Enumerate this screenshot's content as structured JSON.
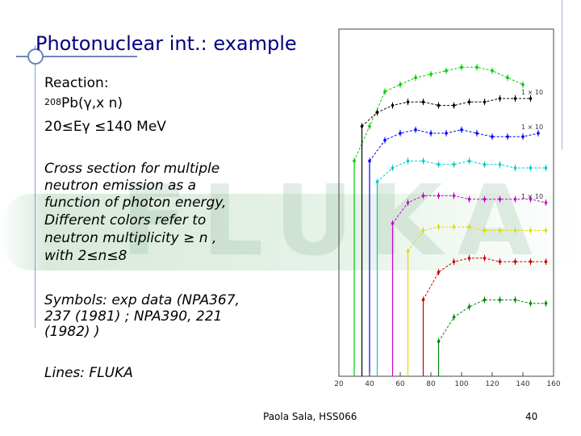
{
  "slide": {
    "title": "Photonuclear int.: example",
    "reaction_label": "Reaction:",
    "reaction_mass": "208",
    "reaction_formula": "Pb(γ,x n)",
    "energy_range": "20≤Eγ ≤140 MeV",
    "description_lines": [
      "Cross section for multiple",
      "neutron emission as a",
      "function of photon energy,",
      "Different colors refer to",
      "neutron multiplicity ≥ n ,",
      "with 2≤n≤8"
    ],
    "symbols_lines": [
      "Symbols: exp data (NPA367,",
      "237 (1981) ; NPA390, 221",
      "(1982) )"
    ],
    "lines_label": "Lines: FLUKA",
    "footer_author": "Paola Sala, HSS066",
    "page_number": "40",
    "watermark": "FLUKA"
  },
  "chart_data": {
    "type": "scatter",
    "title": "",
    "xlabel": "",
    "ylabel": "",
    "x_ticks": [
      "20",
      "40",
      "60",
      "80",
      "100",
      "120",
      "140",
      "160"
    ],
    "xlim": [
      20,
      160
    ],
    "series": [
      {
        "color": "#00cc00",
        "label": "",
        "x": [
          30,
          40,
          50,
          60,
          70,
          80,
          90,
          100,
          110,
          120,
          130,
          140
        ],
        "y": [
          0.62,
          0.72,
          0.82,
          0.84,
          0.86,
          0.87,
          0.88,
          0.89,
          0.89,
          0.88,
          0.86,
          0.84
        ]
      },
      {
        "color": "#000000",
        "label": "1 × 10",
        "x": [
          35,
          45,
          55,
          65,
          75,
          85,
          95,
          105,
          115,
          125,
          135,
          145
        ],
        "y": [
          0.72,
          0.76,
          0.78,
          0.79,
          0.79,
          0.78,
          0.78,
          0.79,
          0.79,
          0.8,
          0.8,
          0.8
        ]
      },
      {
        "color": "#0000ff",
        "label": "1 × 10",
        "x": [
          40,
          50,
          60,
          70,
          80,
          90,
          100,
          110,
          120,
          130,
          140,
          150
        ],
        "y": [
          0.62,
          0.68,
          0.7,
          0.71,
          0.7,
          0.7,
          0.71,
          0.7,
          0.69,
          0.69,
          0.69,
          0.7
        ]
      },
      {
        "color": "#00cccc",
        "label": "",
        "x": [
          45,
          55,
          65,
          75,
          85,
          95,
          105,
          115,
          125,
          135,
          145,
          155
        ],
        "y": [
          0.56,
          0.6,
          0.62,
          0.62,
          0.61,
          0.61,
          0.62,
          0.61,
          0.61,
          0.6,
          0.6,
          0.6
        ]
      },
      {
        "color": "#cc00cc",
        "label": "1 × 10",
        "x": [
          55,
          65,
          75,
          85,
          95,
          105,
          115,
          125,
          135,
          145,
          155
        ],
        "y": [
          0.44,
          0.5,
          0.52,
          0.52,
          0.52,
          0.51,
          0.51,
          0.51,
          0.51,
          0.51,
          0.5
        ]
      },
      {
        "color": "#dddd00",
        "label": "",
        "x": [
          65,
          75,
          85,
          95,
          105,
          115,
          125,
          135,
          145,
          155
        ],
        "y": [
          0.36,
          0.42,
          0.43,
          0.43,
          0.43,
          0.42,
          0.42,
          0.42,
          0.42,
          0.42
        ]
      },
      {
        "color": "#cc0000",
        "label": "",
        "x": [
          75,
          85,
          95,
          105,
          115,
          125,
          135,
          145,
          155
        ],
        "y": [
          0.22,
          0.3,
          0.33,
          0.34,
          0.34,
          0.33,
          0.33,
          0.33,
          0.33
        ]
      },
      {
        "color": "#008800",
        "label": "",
        "x": [
          85,
          95,
          105,
          115,
          125,
          135,
          145,
          155
        ],
        "y": [
          0.1,
          0.17,
          0.2,
          0.22,
          0.22,
          0.22,
          0.21,
          0.21
        ]
      }
    ]
  }
}
